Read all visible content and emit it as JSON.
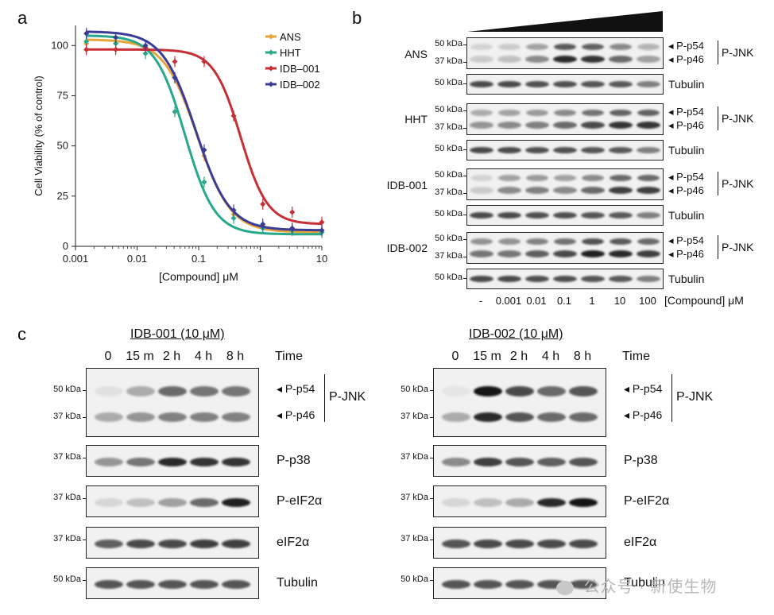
{
  "panels": {
    "a": "a",
    "b": "b",
    "c": "c"
  },
  "chart_data": {
    "type": "line",
    "xscale": "log",
    "xlim": [
      0.001,
      10
    ],
    "ylim": [
      0,
      110
    ],
    "xticks": [
      "0.001",
      "0.01",
      "0.1",
      "1",
      "10"
    ],
    "yticks": [
      "0",
      "25",
      "50",
      "75",
      "100"
    ],
    "xlabel": "[Compound] μM",
    "ylabel": "Cell Viability (% of control)",
    "legend_position": "top-right",
    "series": [
      {
        "name": "ANS",
        "color": "#e8a43a",
        "top": 103,
        "bottom": 7,
        "ec50": 0.095,
        "hill": 1.6,
        "points": [
          [
            0.0015,
            101
          ],
          [
            0.0045,
            101
          ],
          [
            0.0137,
            99
          ],
          [
            0.041,
            84
          ],
          [
            0.123,
            45
          ],
          [
            0.37,
            16
          ],
          [
            1.1,
            10
          ],
          [
            3.3,
            8
          ],
          [
            10,
            7
          ]
        ]
      },
      {
        "name": "HHT",
        "color": "#27a88a",
        "top": 105,
        "bottom": 6,
        "ec50": 0.06,
        "hill": 1.8,
        "points": [
          [
            0.0015,
            102
          ],
          [
            0.0045,
            101
          ],
          [
            0.0137,
            96
          ],
          [
            0.041,
            67
          ],
          [
            0.123,
            32
          ],
          [
            0.37,
            14
          ],
          [
            1.1,
            9
          ],
          [
            3.3,
            8
          ],
          [
            10,
            7
          ]
        ]
      },
      {
        "name": "IDB–001",
        "color": "#c62f35",
        "top": 98,
        "bottom": 11,
        "ec50": 0.48,
        "hill": 2.0,
        "points": [
          [
            0.0015,
            98
          ],
          [
            0.0045,
            98
          ],
          [
            0.0137,
            99
          ],
          [
            0.041,
            92
          ],
          [
            0.123,
            92
          ],
          [
            0.37,
            65
          ],
          [
            1.1,
            21
          ],
          [
            3.3,
            17
          ],
          [
            10,
            12
          ]
        ]
      },
      {
        "name": "IDB–002",
        "color": "#3a3c98",
        "top": 107,
        "bottom": 8,
        "ec50": 0.09,
        "hill": 1.6,
        "points": [
          [
            0.0015,
            106
          ],
          [
            0.0045,
            104
          ],
          [
            0.0137,
            100
          ],
          [
            0.041,
            84
          ],
          [
            0.123,
            48
          ],
          [
            0.37,
            18
          ],
          [
            1.1,
            11
          ],
          [
            3.3,
            9
          ],
          [
            10,
            8
          ]
        ]
      }
    ]
  },
  "panel_b": {
    "kda_50": "50 kDa",
    "kda_37": "37 kDa",
    "p54": "◂ P-p54",
    "p46": "◂ P-p46",
    "pjnk": "P-JNK",
    "tubulin": "Tubulin",
    "groups": [
      "ANS",
      "HHT",
      "IDB-001",
      "IDB-002"
    ],
    "lanes": [
      "-",
      "0.001",
      "0.01",
      "0.1",
      "1",
      "10",
      "100"
    ],
    "conc_label": "[Compound] μM",
    "jnk_intensity": [
      [
        0.15,
        0.2,
        0.45,
        0.9,
        0.85,
        0.6,
        0.35
      ],
      [
        0.4,
        0.45,
        0.5,
        0.6,
        0.75,
        0.85,
        0.85
      ],
      [
        0.15,
        0.45,
        0.5,
        0.45,
        0.6,
        0.8,
        0.8
      ],
      [
        0.55,
        0.55,
        0.65,
        0.75,
        0.95,
        0.9,
        0.8
      ]
    ]
  },
  "panel_c": {
    "left_title": "IDB-001 (10 μM)",
    "right_title": "IDB-002 (10 μM)",
    "times": [
      "0",
      "15 m",
      "2 h",
      "4 h",
      "8 h"
    ],
    "time_label": "Time",
    "kda_50": "50 kDa",
    "kda_37": "37 kDa",
    "p54": "◂ P-p54",
    "p46": "◂ P-p46",
    "pjnk": "P-JNK",
    "rows": [
      "P-p38",
      "P-eIF2α",
      "eIF2α",
      "Tubulin"
    ],
    "left_intensity": {
      "jnk54": [
        0.05,
        0.3,
        0.6,
        0.55,
        0.55
      ],
      "jnk46": [
        0.3,
        0.4,
        0.5,
        0.5,
        0.5
      ],
      "p38": [
        0.4,
        0.55,
        0.9,
        0.85,
        0.85
      ],
      "peif": [
        0.1,
        0.2,
        0.35,
        0.6,
        0.95
      ],
      "eif": [
        0.65,
        0.75,
        0.75,
        0.8,
        0.8
      ],
      "tub": [
        0.7,
        0.7,
        0.7,
        0.7,
        0.7
      ]
    },
    "right_intensity": {
      "jnk54": [
        0.03,
        1.0,
        0.75,
        0.6,
        0.7
      ],
      "jnk46": [
        0.3,
        0.9,
        0.7,
        0.6,
        0.6
      ],
      "p38": [
        0.45,
        0.8,
        0.7,
        0.65,
        0.7
      ],
      "peif": [
        0.1,
        0.2,
        0.3,
        0.9,
        1.0
      ],
      "eif": [
        0.7,
        0.75,
        0.75,
        0.75,
        0.75
      ],
      "tub": [
        0.7,
        0.7,
        0.7,
        0.7,
        0.7
      ]
    }
  },
  "watermark": {
    "text": "公众号 · 新使生物"
  }
}
